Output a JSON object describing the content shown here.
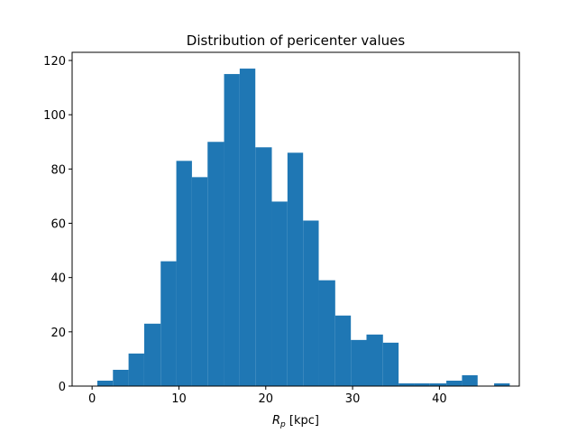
{
  "chart_data": {
    "type": "bar",
    "title": "Distribution of pericenter values",
    "xlabel": "",
    "xlabel_parts": {
      "symbol": "R",
      "subscript": "p",
      "unit": "[kpc]"
    },
    "ylabel": "",
    "xlim": [
      -2.3,
      49.2
    ],
    "ylim": [
      0,
      123
    ],
    "xticks": [
      0,
      10,
      20,
      30,
      40
    ],
    "yticks": [
      0,
      20,
      40,
      60,
      80,
      100,
      120
    ],
    "bar_color": "#1f77b4",
    "grid": false,
    "bins": [
      {
        "x0": 0.6,
        "x1": 2.4,
        "count": 2
      },
      {
        "x0": 2.4,
        "x1": 4.2,
        "count": 6
      },
      {
        "x0": 4.2,
        "x1": 6.0,
        "count": 12
      },
      {
        "x0": 6.0,
        "x1": 7.9,
        "count": 23
      },
      {
        "x0": 7.9,
        "x1": 9.7,
        "count": 46
      },
      {
        "x0": 9.7,
        "x1": 11.5,
        "count": 83
      },
      {
        "x0": 11.5,
        "x1": 13.3,
        "count": 77
      },
      {
        "x0": 13.3,
        "x1": 15.2,
        "count": 90
      },
      {
        "x0": 15.2,
        "x1": 17.0,
        "count": 115
      },
      {
        "x0": 17.0,
        "x1": 18.8,
        "count": 117
      },
      {
        "x0": 18.8,
        "x1": 20.7,
        "count": 88
      },
      {
        "x0": 20.7,
        "x1": 22.5,
        "count": 68
      },
      {
        "x0": 22.5,
        "x1": 24.3,
        "count": 86
      },
      {
        "x0": 24.3,
        "x1": 26.1,
        "count": 61
      },
      {
        "x0": 26.1,
        "x1": 28.0,
        "count": 39
      },
      {
        "x0": 28.0,
        "x1": 29.8,
        "count": 26
      },
      {
        "x0": 29.8,
        "x1": 31.6,
        "count": 17
      },
      {
        "x0": 31.6,
        "x1": 33.5,
        "count": 19
      },
      {
        "x0": 33.5,
        "x1": 35.3,
        "count": 16
      },
      {
        "x0": 35.3,
        "x1": 37.1,
        "count": 1
      },
      {
        "x0": 37.1,
        "x1": 38.9,
        "count": 1
      },
      {
        "x0": 38.9,
        "x1": 40.8,
        "count": 1
      },
      {
        "x0": 40.8,
        "x1": 42.6,
        "count": 2
      },
      {
        "x0": 42.6,
        "x1": 44.4,
        "count": 4
      },
      {
        "x0": 44.4,
        "x1": 46.3,
        "count": 0
      },
      {
        "x0": 46.3,
        "x1": 48.1,
        "count": 1
      }
    ]
  }
}
